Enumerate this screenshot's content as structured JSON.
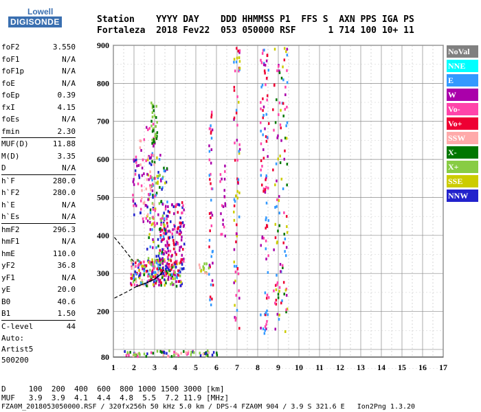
{
  "header": {
    "line1": "Station    YYYY DAY    DDD HHMMSS P1  FFS S  AXN PPS IGA PS",
    "line2": "Fortaleza  2018 Fev22  053 050000 RSF      1 714 100 10+ 11"
  },
  "logo": {
    "top": "Lowell",
    "bottom": "DIGISONDE"
  },
  "params": [
    {
      "name": "foF2",
      "value": "3.550"
    },
    {
      "name": "foF1",
      "value": "N/A"
    },
    {
      "name": "foF1p",
      "value": "N/A"
    },
    {
      "name": "foE",
      "value": "N/A"
    },
    {
      "name": "foEp",
      "value": "0.39"
    },
    {
      "name": "fxI",
      "value": "4.15"
    },
    {
      "name": "foEs",
      "value": "N/A"
    },
    {
      "name": "fmin",
      "value": "2.30"
    },
    {
      "name": "MUF(D)",
      "value": "11.88",
      "sep": true
    },
    {
      "name": "M(D)",
      "value": "3.35"
    },
    {
      "name": "D",
      "value": "N/A"
    },
    {
      "name": "h`F",
      "value": "280.0",
      "sep": true
    },
    {
      "name": "h`F2",
      "value": "280.0"
    },
    {
      "name": "h`E",
      "value": "N/A"
    },
    {
      "name": "h`Es",
      "value": "N/A"
    },
    {
      "name": "hmF2",
      "value": "296.3",
      "sep": true
    },
    {
      "name": "hmF1",
      "value": "N/A"
    },
    {
      "name": "hmE",
      "value": "110.0"
    },
    {
      "name": "yF2",
      "value": "36.8"
    },
    {
      "name": "yF1",
      "value": "N/A"
    },
    {
      "name": "yE",
      "value": "20.0"
    },
    {
      "name": "B0",
      "value": "40.6"
    },
    {
      "name": "B1",
      "value": "1.50"
    },
    {
      "name": "C-level",
      "value": "44",
      "sep": true
    }
  ],
  "auto": [
    "Auto:",
    "Artist5",
    "500200"
  ],
  "legend": [
    {
      "label": "NoVal",
      "color": "#808080"
    },
    {
      "label": "NNE",
      "color": "#00ffff"
    },
    {
      "label": "E",
      "color": "#3399ff"
    },
    {
      "label": "W",
      "color": "#aa00aa"
    },
    {
      "label": "Vo-",
      "color": "#ff44aa"
    },
    {
      "label": "Vo+",
      "color": "#ee0033"
    },
    {
      "label": "SSW",
      "color": "#ffaaaa"
    },
    {
      "label": "X-",
      "color": "#007700"
    },
    {
      "label": "X+",
      "color": "#88cc44"
    },
    {
      "label": "SSE",
      "color": "#cccc00"
    },
    {
      "label": "NNW",
      "color": "#2222cc"
    }
  ],
  "footer": {
    "d_row": "D     100  200  400  600  800 1000 1500 3000 [km]",
    "muf_row": "MUF   3.9  3.9  4.1  4.4  4.8  5.5  7.2 11.9 [MHz]",
    "file_line": "FZA0M_2018053050000.RSF / 320fx256h 50 kHz 5.0 km / DPS-4 FZA0M 904 / 3.9 S 321.6 E   Ion2Png 1.3.20"
  },
  "chart_data": {
    "type": "scatter",
    "title": "",
    "xlabel": "",
    "ylabel": "",
    "xlim": [
      1,
      17
    ],
    "ylim": [
      80,
      900
    ],
    "x_ticks": [
      1,
      2,
      3,
      4,
      5,
      6,
      7,
      8,
      9,
      10,
      11,
      12,
      13,
      14,
      15,
      16,
      17
    ],
    "y_ticks": [
      100,
      200,
      300,
      400,
      500,
      600,
      700,
      800,
      900
    ],
    "y_tick_labels": [
      "",
      "200",
      "300",
      "400",
      "500",
      "600",
      "700",
      "800",
      "900"
    ],
    "x_grid_minor": [
      1.5,
      2.5,
      3.5,
      4.5,
      5.5,
      6.5,
      7.5,
      8.5,
      9.5,
      10.5,
      11.5,
      12.5,
      13.5,
      14.5,
      15.5,
      16.5
    ],
    "profile_curve": {
      "upper_dashed": [
        [
          1.05,
          395
        ],
        [
          1.5,
          365
        ],
        [
          2.0,
          330
        ]
      ],
      "lower_dashed": [
        [
          1.05,
          235
        ],
        [
          1.6,
          250
        ],
        [
          2.1,
          265
        ]
      ],
      "solid": [
        [
          2.1,
          265
        ],
        [
          2.6,
          275
        ],
        [
          3.0,
          285
        ],
        [
          3.3,
          298
        ],
        [
          3.45,
          310
        ]
      ]
    },
    "clusters": [
      {
        "x": [
          1.8,
          4.3
        ],
        "y": [
          270,
          340
        ],
        "n": 240,
        "colors": [
          "#ff44aa",
          "#aa00aa",
          "#2222cc",
          "#007700",
          "#ee0033",
          "#ffaaaa",
          "#88cc44",
          "#cccc00",
          "#3399ff"
        ]
      },
      {
        "x": [
          3.2,
          4.4
        ],
        "y": [
          310,
          490
        ],
        "n": 150,
        "colors": [
          "#aa00aa",
          "#ff44aa",
          "#ee0033",
          "#2222cc"
        ]
      },
      {
        "x": [
          2.6,
          3.6
        ],
        "y": [
          330,
          620
        ],
        "n": 110,
        "colors": [
          "#007700",
          "#88cc44",
          "#cccc00",
          "#2222cc",
          "#aa00aa",
          "#3399ff"
        ]
      },
      {
        "x": [
          2.2,
          3.0
        ],
        "y": [
          430,
          700
        ],
        "n": 60,
        "colors": [
          "#ff44aa",
          "#aa00aa",
          "#ffaaaa"
        ]
      },
      {
        "x": [
          2.8,
          3.1
        ],
        "y": [
          640,
          760
        ],
        "n": 30,
        "colors": [
          "#007700",
          "#88cc44"
        ]
      },
      {
        "x": [
          1.9,
          2.3
        ],
        "y": [
          440,
          620
        ],
        "n": 25,
        "colors": [
          "#aa00aa",
          "#ff44aa",
          "#2222cc"
        ]
      },
      {
        "x": [
          5.6,
          5.8
        ],
        "y": [
          220,
          780
        ],
        "n": 45,
        "colors": [
          "#aa00aa",
          "#ff44aa",
          "#3399ff",
          "#ee0033"
        ]
      },
      {
        "x": [
          6.8,
          7.1
        ],
        "y": [
          150,
          900
        ],
        "n": 70,
        "colors": [
          "#aa00aa",
          "#ff44aa",
          "#ee0033",
          "#3399ff",
          "#cccc00"
        ]
      },
      {
        "x": [
          8.1,
          8.5
        ],
        "y": [
          140,
          900
        ],
        "n": 90,
        "colors": [
          "#aa00aa",
          "#ff44aa",
          "#ee0033",
          "#3399ff"
        ]
      },
      {
        "x": [
          8.7,
          9.4
        ],
        "y": [
          150,
          900
        ],
        "n": 110,
        "colors": [
          "#aa00aa",
          "#ff44aa",
          "#ee0033",
          "#3399ff",
          "#007700",
          "#cccc00"
        ]
      },
      {
        "x": [
          6.1,
          6.4
        ],
        "y": [
          400,
          600
        ],
        "n": 20,
        "colors": [
          "#aa00aa",
          "#ff44aa"
        ]
      },
      {
        "x": [
          5.0,
          5.6
        ],
        "y": [
          300,
          330
        ],
        "n": 15,
        "colors": [
          "#cccc00",
          "#ffaaaa",
          "#88cc44"
        ]
      },
      {
        "x": [
          1.5,
          6.0
        ],
        "y": [
          85,
          100
        ],
        "n": 70,
        "colors": [
          "#ffaaaa",
          "#ff44aa",
          "#88cc44",
          "#2222cc",
          "#007700"
        ]
      }
    ]
  }
}
